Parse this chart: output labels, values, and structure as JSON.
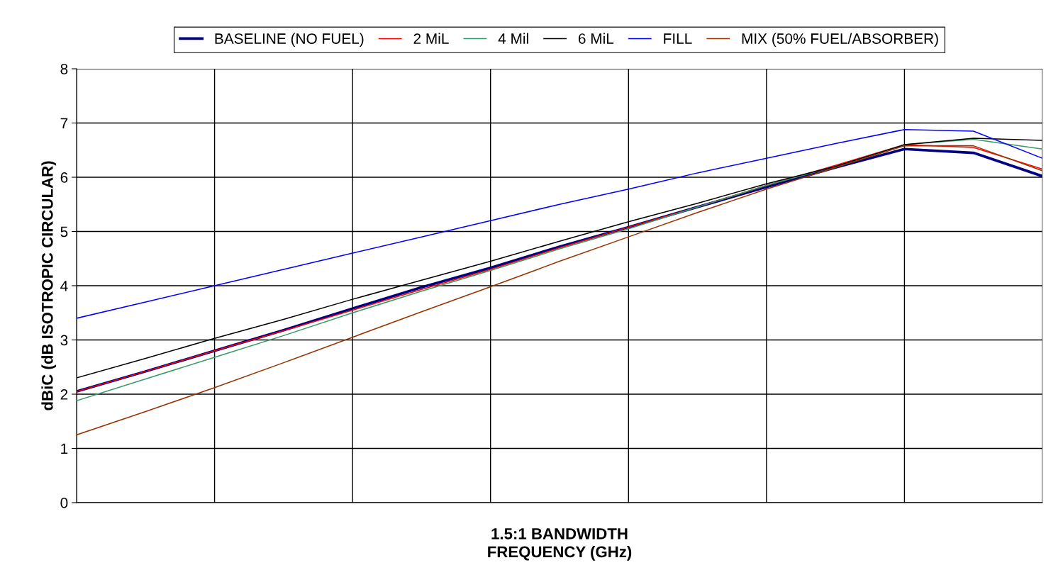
{
  "chart_data": {
    "type": "line",
    "ylabel": "dBiC (dB ISOTROPIC CIRCULAR)",
    "xlabel": "1.5:1 BANDWIDTH\nFREQUENCY (GHz)",
    "categories": [
      null,
      null,
      null,
      null,
      null,
      null,
      null,
      null,
      null,
      null,
      null,
      null,
      null,
      null,
      null
    ],
    "series": [
      {
        "name": "BASELINE (NO FUEL)",
        "color": "#000080",
        "values": [
          2.05,
          2.42,
          2.8,
          3.18,
          3.58,
          3.97,
          4.33,
          4.72,
          5.08,
          5.45,
          5.82,
          6.18,
          6.52,
          6.45,
          6.02
        ]
      },
      {
        "name": "2 MiL",
        "color": "#ff0000",
        "values": [
          2.05,
          2.42,
          2.8,
          3.17,
          3.55,
          3.93,
          4.3,
          4.7,
          5.08,
          5.45,
          5.85,
          6.22,
          6.6,
          6.55,
          6.15
        ]
      },
      {
        "name": "4 Mil",
        "color": "#339966",
        "values": [
          1.88,
          2.28,
          2.68,
          3.08,
          3.5,
          3.9,
          4.28,
          4.68,
          5.05,
          5.45,
          5.85,
          6.2,
          6.6,
          6.7,
          6.52
        ]
      },
      {
        "name": "6 MiL",
        "color": "#000000",
        "values": [
          2.3,
          2.66,
          3.03,
          3.38,
          3.75,
          4.1,
          4.45,
          4.82,
          5.18,
          5.52,
          5.88,
          6.2,
          6.6,
          6.72,
          6.68
        ]
      },
      {
        "name": "FILL",
        "color": "#0000ff",
        "values": [
          3.4,
          3.7,
          4.0,
          4.3,
          4.6,
          4.9,
          5.2,
          5.5,
          5.78,
          6.08,
          6.35,
          6.62,
          6.88,
          6.85,
          6.35
        ]
      },
      {
        "name": "MIX (50% FUEL/ABSORBER)",
        "color": "#993300",
        "values": [
          1.25,
          1.68,
          2.12,
          2.58,
          3.05,
          3.52,
          3.98,
          4.45,
          4.9,
          5.35,
          5.78,
          6.18,
          6.58,
          6.58,
          6.12
        ]
      }
    ],
    "ylim": [
      0,
      8
    ],
    "yticks": [
      0,
      1,
      2,
      3,
      4,
      5,
      6,
      7,
      8
    ],
    "grid": true,
    "legend": "top",
    "marker": "none",
    "line_style": "solid"
  }
}
